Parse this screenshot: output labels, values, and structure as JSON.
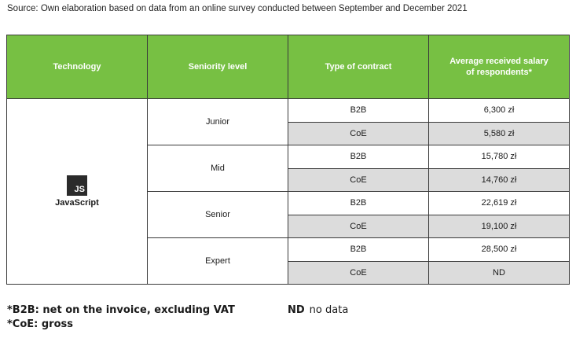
{
  "source": "Source: Own elaboration based on data from an online survey conducted between September and December 2021",
  "table": {
    "headers": [
      "Technology",
      "Seniority level",
      "Type of contract",
      "Average received salary of respondents*"
    ],
    "technology": {
      "logo_text": "JS",
      "name": "JavaScript"
    },
    "groups": [
      {
        "level": "Junior",
        "rows": [
          {
            "contract": "B2B",
            "salary": "6,300 zł"
          },
          {
            "contract": "CoE",
            "salary": "5,580 zł"
          }
        ]
      },
      {
        "level": "Mid",
        "rows": [
          {
            "contract": "B2B",
            "salary": "15,780 zł"
          },
          {
            "contract": "CoE",
            "salary": "14,760 zł"
          }
        ]
      },
      {
        "level": "Senior",
        "rows": [
          {
            "contract": "B2B",
            "salary": "22,619 zł"
          },
          {
            "contract": "CoE",
            "salary": "19,100 zł"
          }
        ]
      },
      {
        "level": "Expert",
        "rows": [
          {
            "contract": "B2B",
            "salary": "28,500 zł"
          },
          {
            "contract": "CoE",
            "salary": "ND"
          }
        ]
      }
    ]
  },
  "notes": {
    "b2b": "*B2B: net on the invoice, excluding VAT",
    "coe": "*CoE: gross",
    "nd_abbr": "ND",
    "nd_desc": "no data"
  },
  "colors": {
    "header_bg": "#77c043",
    "alt_row_bg": "#dcdcdc",
    "border": "#3a3a3a"
  }
}
